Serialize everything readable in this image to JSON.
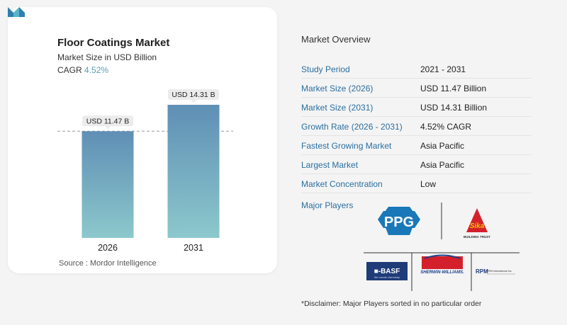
{
  "chart_data": {
    "type": "bar",
    "title": "Floor Coatings Market",
    "subtitle": "Market Size in USD Billion",
    "cagr_label": "CAGR",
    "cagr_value": "4.52%",
    "categories": [
      "2026",
      "2031"
    ],
    "values": [
      11.47,
      14.31
    ],
    "data_labels": [
      "USD 11.47 B",
      "USD 14.31 B"
    ],
    "ylim": [
      0,
      14.31
    ],
    "grid": false,
    "colors": {
      "bar_top": "#5f8fb5",
      "bar_bottom": "#8cc8cc"
    }
  },
  "source": "Source :  Mordor Intelligence",
  "overview": {
    "title": "Market Overview",
    "rows": [
      {
        "key": "Study Period",
        "value": "2021 - 2031"
      },
      {
        "key": "Market Size (2026)",
        "value": "USD 11.47 Billion"
      },
      {
        "key": "Market Size (2031)",
        "value": "USD 14.31 Billion"
      },
      {
        "key": "Growth Rate (2026 - 2031)",
        "value": "4.52% CAGR"
      },
      {
        "key": "Fastest Growing Market",
        "value": "Asia Pacific"
      },
      {
        "key": "Largest Market",
        "value": "Asia Pacific"
      },
      {
        "key": "Market Concentration",
        "value": "Low"
      }
    ],
    "players_label": "Major Players",
    "players": [
      {
        "name": "PPG",
        "logo_text": "PPG"
      },
      {
        "name": "Sika",
        "logo_text": "Sika",
        "tagline": "BUILDING TRUST"
      },
      {
        "name": "BASF",
        "logo_text": "■-BASF",
        "tagline": "We create chemistry"
      },
      {
        "name": "Sherwin-Williams",
        "logo_text": "SHERWIN-WILLIAMS."
      },
      {
        "name": "RPM",
        "logo_text": "RPM",
        "tagline": "RPM International Inc."
      }
    ],
    "disclaimer": "*Disclaimer: Major Players sorted in no particular order"
  }
}
